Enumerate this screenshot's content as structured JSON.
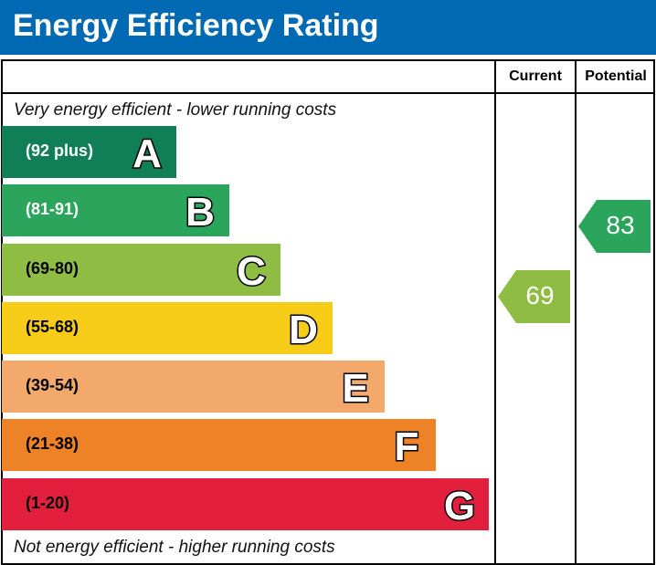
{
  "title": "Energy Efficiency Rating",
  "columns": {
    "current": "Current",
    "potential": "Potential"
  },
  "top_note": "Very energy efficient - lower running costs",
  "bottom_note": "Not energy efficient - higher running costs",
  "chart_data": {
    "type": "bar",
    "bands": [
      {
        "letter": "A",
        "range": "(92 plus)",
        "color": "#107e57",
        "text_color": "#ffffff"
      },
      {
        "letter": "B",
        "range": "(81-91)",
        "color": "#2ca55c",
        "text_color": "#ffffff"
      },
      {
        "letter": "C",
        "range": "(69-80)",
        "color": "#8fbd43",
        "text_color": "#000000"
      },
      {
        "letter": "D",
        "range": "(55-68)",
        "color": "#f6cc18",
        "text_color": "#000000"
      },
      {
        "letter": "E",
        "range": "(39-54)",
        "color": "#f2a96b",
        "text_color": "#000000"
      },
      {
        "letter": "F",
        "range": "(21-38)",
        "color": "#ee8226",
        "text_color": "#000000"
      },
      {
        "letter": "G",
        "range": "(1-20)",
        "color": "#e2203d",
        "text_color": "#000000"
      }
    ],
    "current": {
      "value": "69",
      "band": "C",
      "color": "#8fbd43"
    },
    "potential": {
      "value": "83",
      "band": "B",
      "color": "#2ca55c"
    }
  },
  "colors": {
    "header": "#0069b4"
  }
}
